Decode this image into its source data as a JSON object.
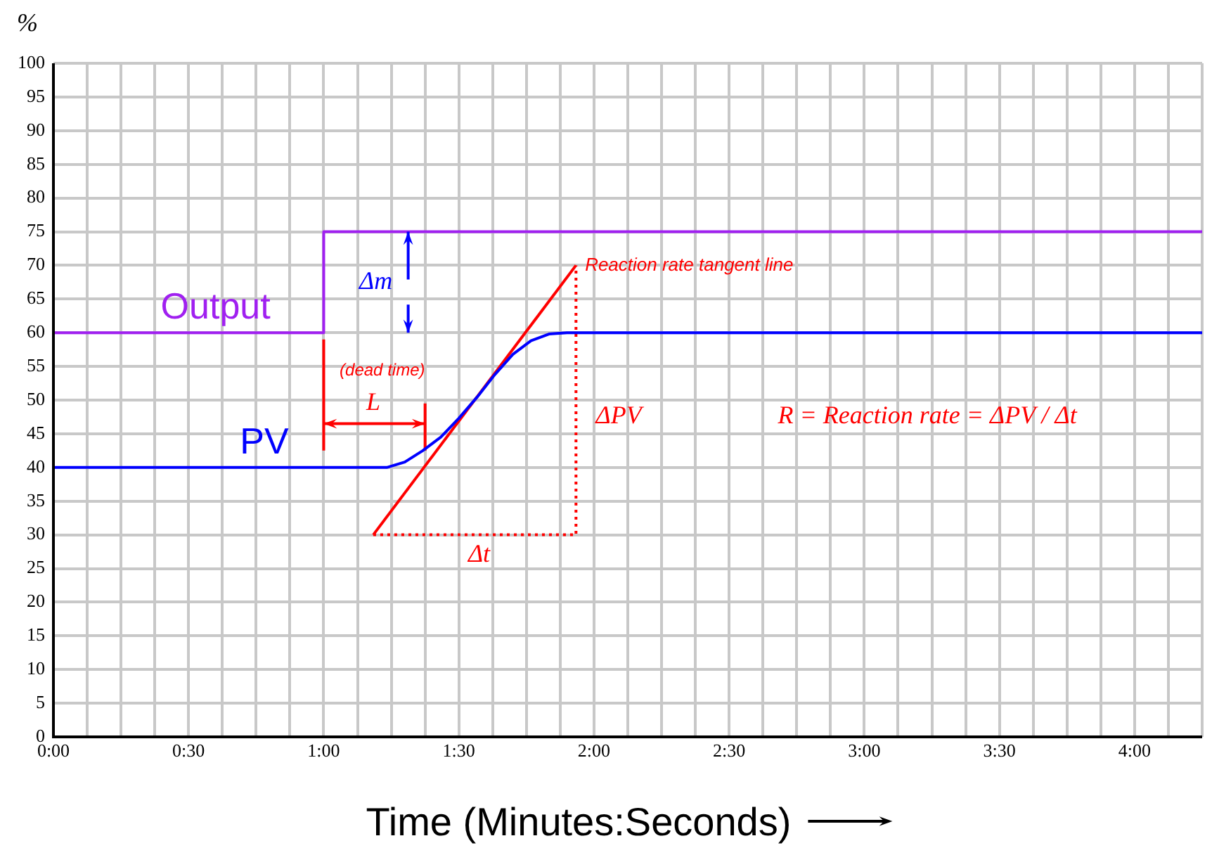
{
  "chart_data": {
    "type": "line",
    "xlabel": "Time (Minutes:Seconds)",
    "ylabel": "%",
    "xlim": [
      0,
      255
    ],
    "ylim": [
      0,
      100
    ],
    "xticks": [
      {
        "value": 0,
        "label": "0:00"
      },
      {
        "value": 7.5,
        "label": null
      },
      {
        "value": 15,
        "label": null
      },
      {
        "value": 22.5,
        "label": null
      },
      {
        "value": 30,
        "label": "0:30"
      },
      {
        "value": 37.5,
        "label": null
      },
      {
        "value": 45,
        "label": null
      },
      {
        "value": 52.5,
        "label": null
      },
      {
        "value": 60,
        "label": "1:00"
      },
      {
        "value": 67.5,
        "label": null
      },
      {
        "value": 75,
        "label": null
      },
      {
        "value": 82.5,
        "label": null
      },
      {
        "value": 90,
        "label": "1:30"
      },
      {
        "value": 97.5,
        "label": null
      },
      {
        "value": 105,
        "label": null
      },
      {
        "value": 112.5,
        "label": null
      },
      {
        "value": 120,
        "label": "2:00"
      },
      {
        "value": 127.5,
        "label": null
      },
      {
        "value": 135,
        "label": null
      },
      {
        "value": 142.5,
        "label": null
      },
      {
        "value": 150,
        "label": "2:30"
      },
      {
        "value": 157.5,
        "label": null
      },
      {
        "value": 165,
        "label": null
      },
      {
        "value": 172.5,
        "label": null
      },
      {
        "value": 180,
        "label": "3:00"
      },
      {
        "value": 187.5,
        "label": null
      },
      {
        "value": 195,
        "label": null
      },
      {
        "value": 202.5,
        "label": null
      },
      {
        "value": 210,
        "label": "3:30"
      },
      {
        "value": 217.5,
        "label": null
      },
      {
        "value": 225,
        "label": null
      },
      {
        "value": 232.5,
        "label": null
      },
      {
        "value": 240,
        "label": "4:00"
      },
      {
        "value": 247.5,
        "label": null
      },
      {
        "value": 255,
        "label": null
      }
    ],
    "yticks": [
      0,
      5,
      10,
      15,
      20,
      25,
      30,
      35,
      40,
      45,
      50,
      55,
      60,
      65,
      70,
      75,
      80,
      85,
      90,
      95,
      100
    ],
    "grid": true,
    "marker": "none",
    "line_style": "solid",
    "series": [
      {
        "name": "Output",
        "color": "#a020f0",
        "x": [
          0,
          60,
          60,
          255
        ],
        "values": [
          60,
          60,
          75,
          75
        ]
      },
      {
        "name": "PV",
        "color": "#0000ff",
        "x": [
          0,
          74,
          78,
          82,
          86,
          90,
          94,
          98,
          102,
          106,
          110,
          114,
          255
        ],
        "values": [
          40,
          40,
          40.8,
          42.5,
          44.5,
          47.3,
          50.4,
          53.8,
          56.8,
          58.8,
          59.8,
          60,
          60
        ]
      },
      {
        "color": "#ff0000",
        "x": [
          71,
          116
        ],
        "values": [
          30,
          70
        ]
      },
      {
        "color": "#ff0000",
        "x": [
          71,
          116,
          116
        ],
        "values": [
          30,
          30,
          70
        ],
        "line_style": "dotted"
      },
      {
        "color": "#ff0000",
        "x": [
          60,
          60
        ],
        "values": [
          42.5,
          59
        ]
      },
      {
        "color": "#ff0000",
        "x": [
          82.5,
          82.5
        ],
        "values": [
          42.5,
          49.5
        ]
      }
    ],
    "annotations": [
      "Reaction rate tangent line",
      {
        "text": "Δm",
        "x": 78.75,
        "y": 75
      },
      "(dead time)",
      "L",
      "ΔPV",
      "Δt",
      "R = Reaction rate = ΔPV / Δt"
    ]
  }
}
